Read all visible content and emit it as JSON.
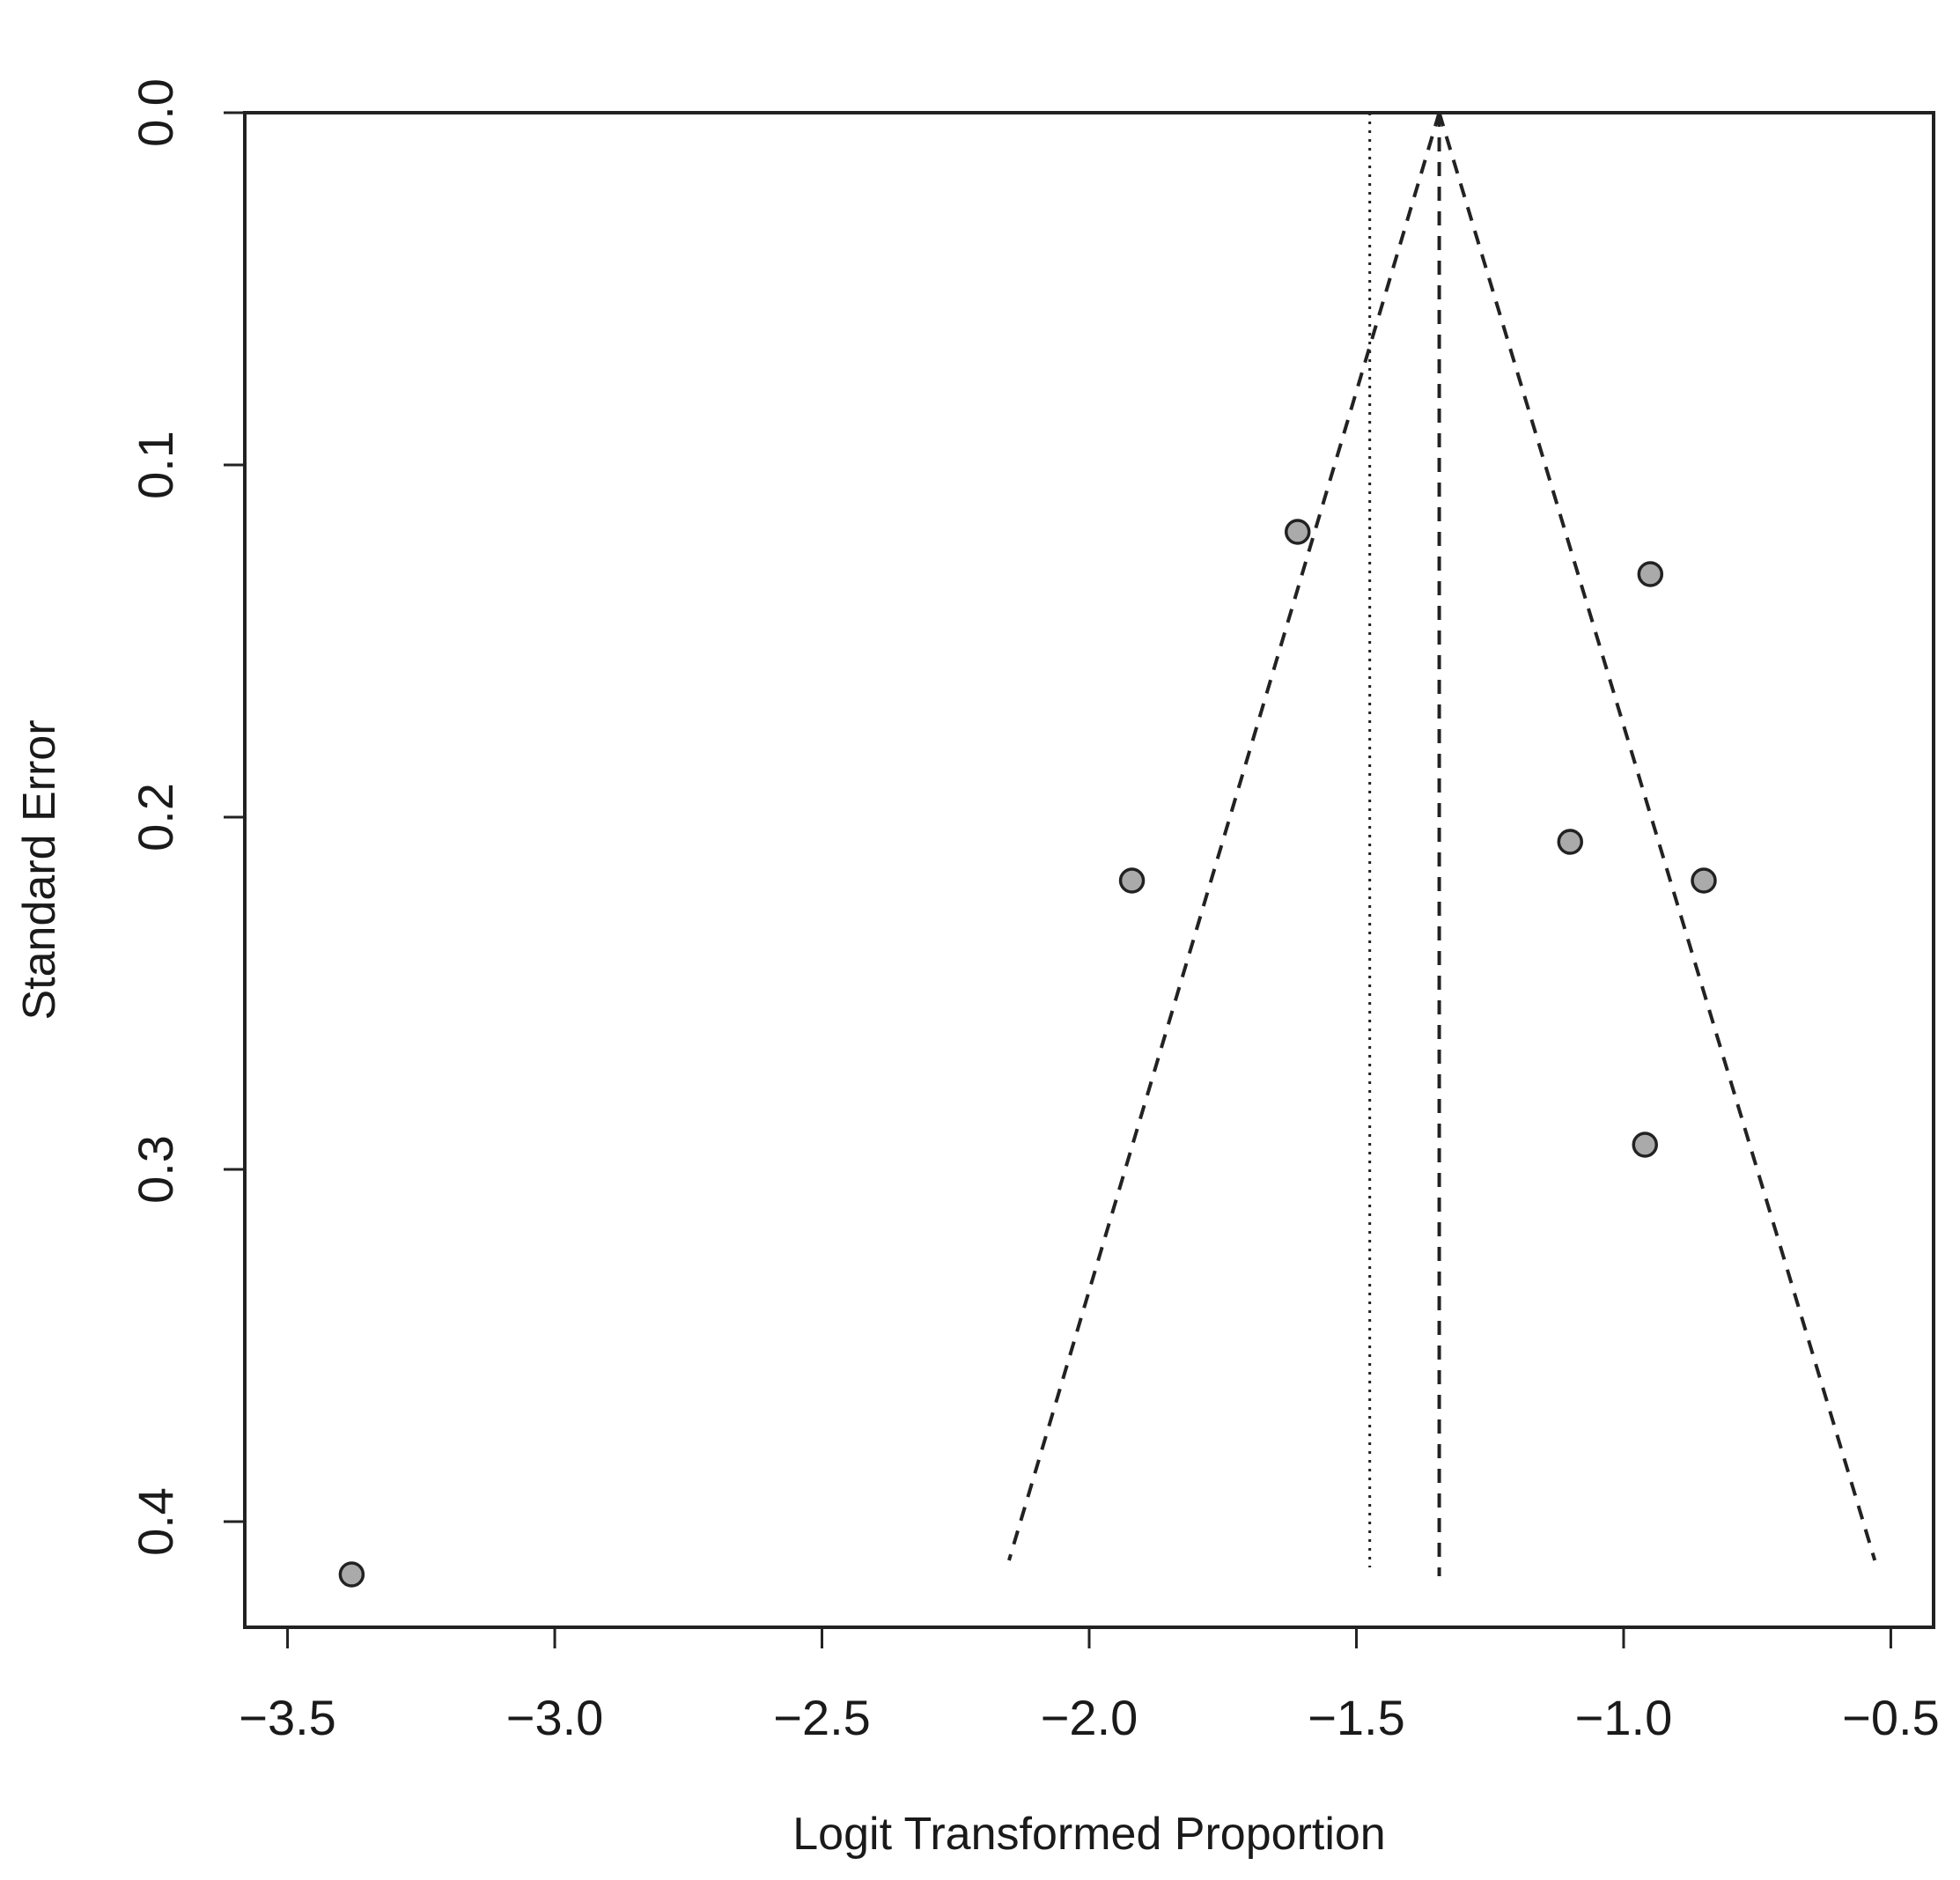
{
  "chart_data": {
    "type": "scatter",
    "subtype": "funnel-plot",
    "title": "",
    "xlabel": "Logit Transformed Proportion",
    "ylabel": "Standard Error",
    "xlim": [
      -3.58,
      -0.42
    ],
    "ylim": [
      0.0,
      0.43
    ],
    "y_reversed": true,
    "grid": false,
    "legend": "none",
    "x_ticks": [
      -3.5,
      -3.0,
      -2.5,
      -2.0,
      -1.5,
      -1.0,
      -0.5
    ],
    "x_tick_labels": [
      "−3.5",
      "−3.0",
      "−2.5",
      "−2.0",
      "−1.5",
      "−1.0",
      "−0.5"
    ],
    "y_ticks": [
      0.0,
      0.1,
      0.2,
      0.3,
      0.4
    ],
    "y_tick_labels": [
      "0.0",
      "0.1",
      "0.2",
      "0.3",
      "0.4"
    ],
    "points": [
      {
        "x": -1.61,
        "y": 0.119
      },
      {
        "x": -0.95,
        "y": 0.131
      },
      {
        "x": -1.1,
        "y": 0.207
      },
      {
        "x": -1.92,
        "y": 0.218
      },
      {
        "x": -0.85,
        "y": 0.218
      },
      {
        "x": -0.96,
        "y": 0.293
      },
      {
        "x": -3.38,
        "y": 0.415
      }
    ],
    "pooled_estimate": -1.345,
    "reference_line": -1.475,
    "funnel": {
      "apex": {
        "x": -1.345,
        "y": 0.0
      },
      "left_base": {
        "x": -2.15,
        "y": 0.411
      },
      "right_base": {
        "x": -0.53,
        "y": 0.411
      }
    },
    "colors": {
      "point_fill": "#aaaaaa",
      "point_stroke": "#222222",
      "line": "#222222",
      "frame": "#222222"
    }
  }
}
